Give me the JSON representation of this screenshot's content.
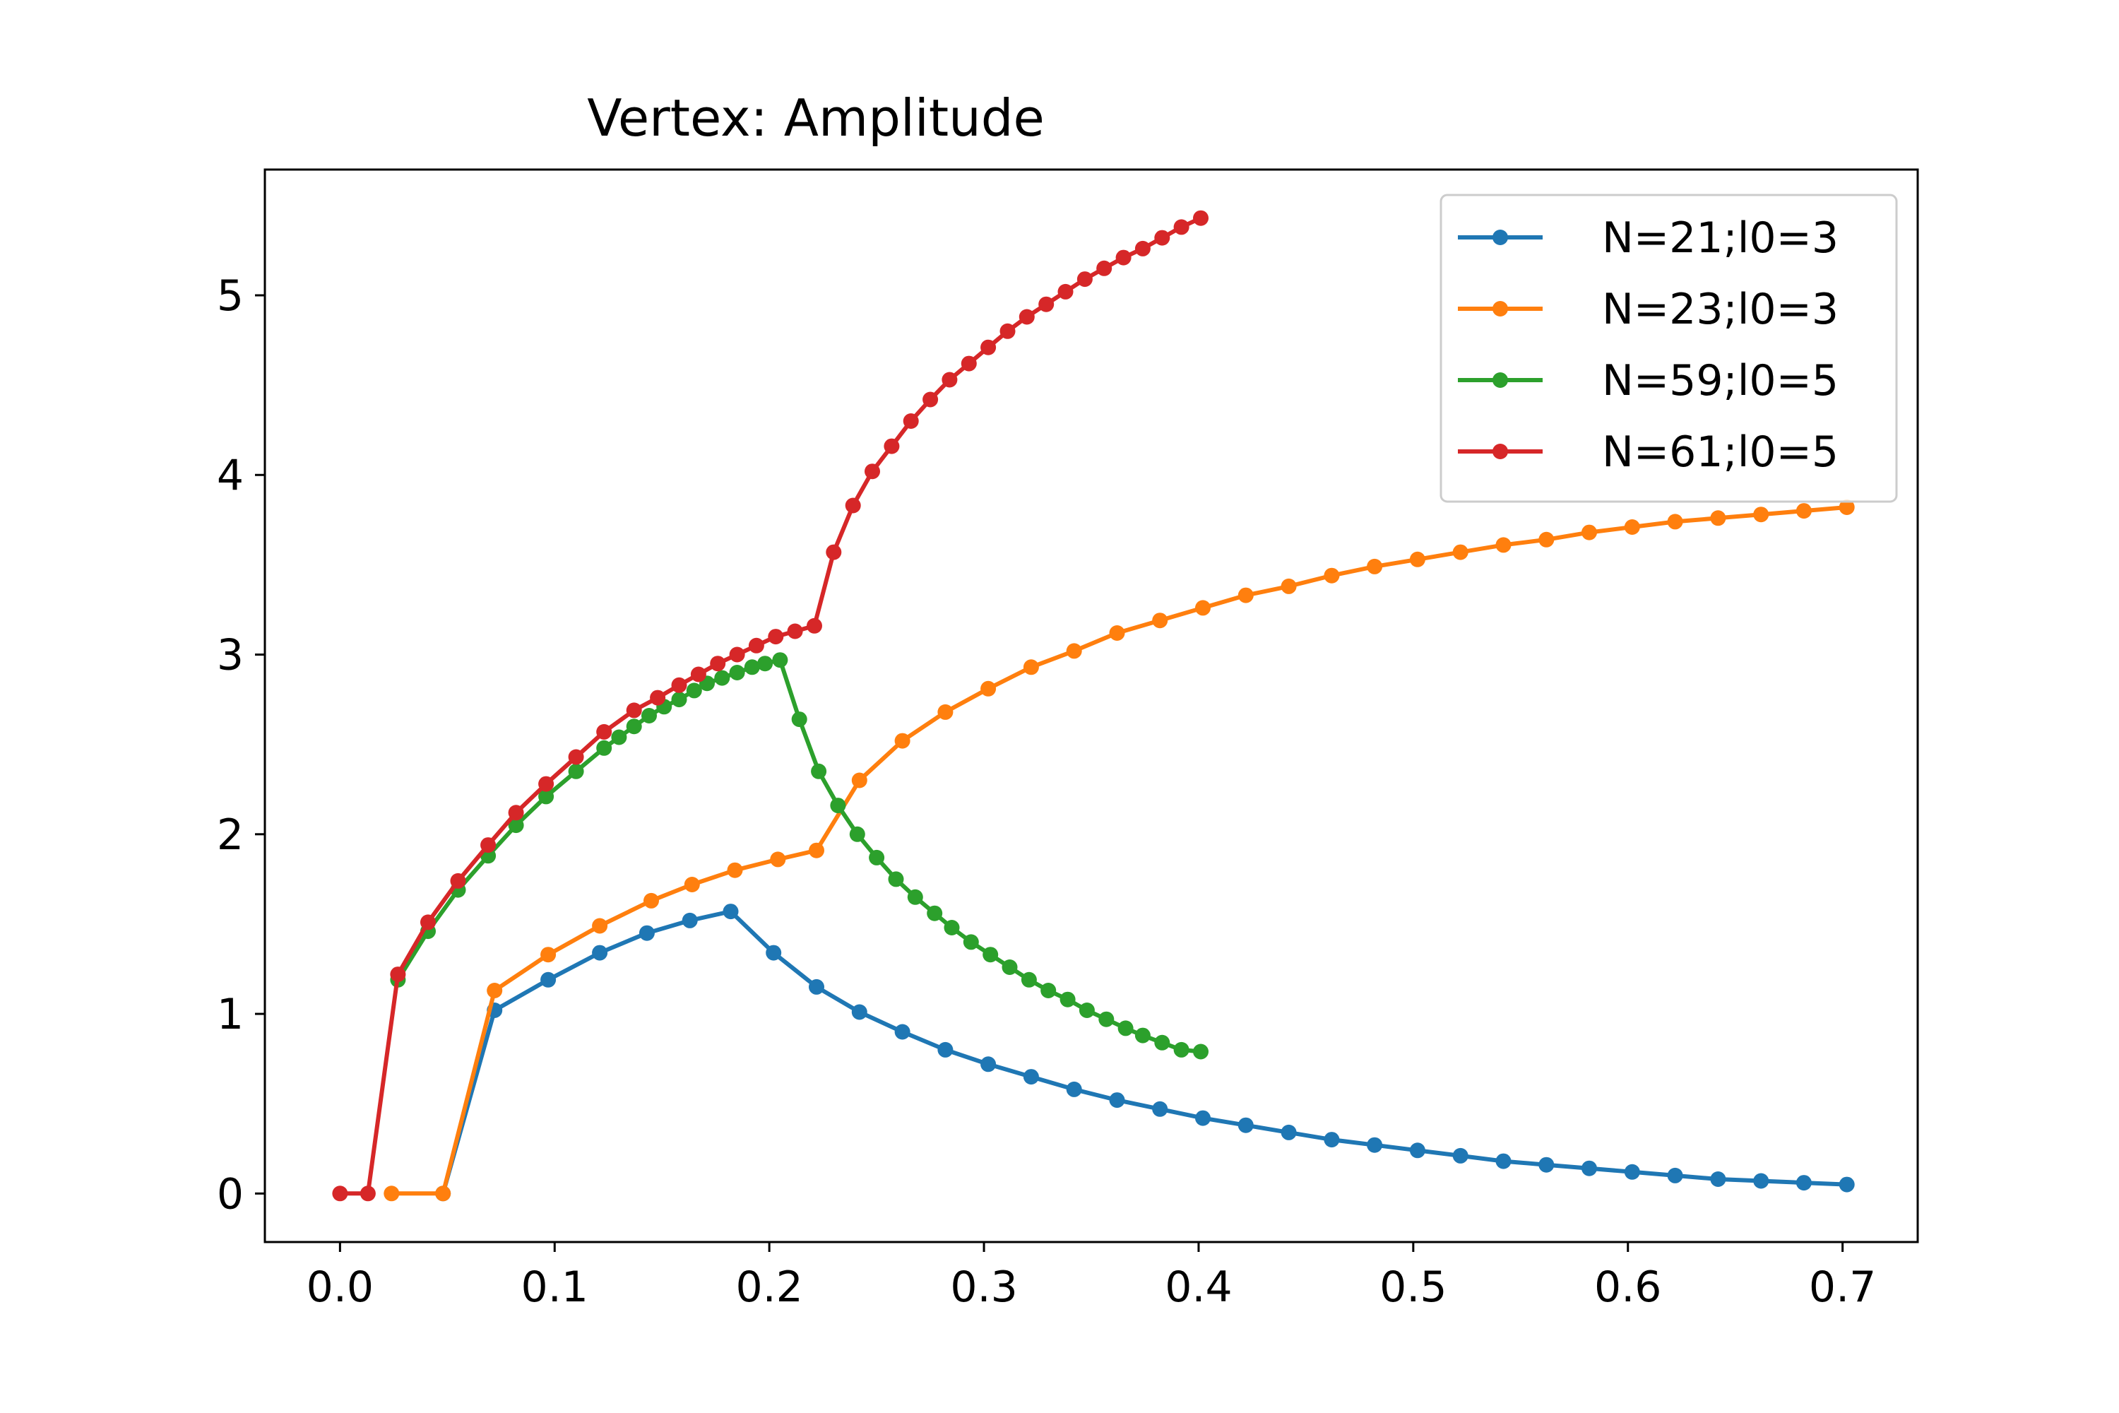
{
  "chart_data": {
    "type": "line",
    "title": "Vertex: Amplitude",
    "xlabel": "",
    "ylabel": "",
    "xlim": [
      -0.035,
      0.735
    ],
    "ylim": [
      -0.27,
      5.7
    ],
    "xticks": [
      "0.0",
      "0.1",
      "0.2",
      "0.3",
      "0.4",
      "0.5",
      "0.6",
      "0.7"
    ],
    "yticks": [
      "0",
      "1",
      "2",
      "3",
      "4",
      "5"
    ],
    "grid": false,
    "legend_position": "top-right",
    "series": [
      {
        "name": "N=21;l0=3",
        "color": "#1f77b4",
        "marker": "circle",
        "x": [
          0.048,
          0.072,
          0.097,
          0.121,
          0.143,
          0.163,
          0.182,
          0.202,
          0.222,
          0.242,
          0.262,
          0.282,
          0.302,
          0.322,
          0.342,
          0.362,
          0.382,
          0.402,
          0.422,
          0.442,
          0.462,
          0.482,
          0.502,
          0.522,
          0.542,
          0.562,
          0.582,
          0.602,
          0.622,
          0.642,
          0.662,
          0.682,
          0.702
        ],
        "y": [
          0.0,
          1.02,
          1.19,
          1.34,
          1.45,
          1.52,
          1.57,
          1.34,
          1.15,
          1.01,
          0.9,
          0.8,
          0.72,
          0.65,
          0.58,
          0.52,
          0.47,
          0.42,
          0.38,
          0.34,
          0.3,
          0.27,
          0.24,
          0.21,
          0.18,
          0.16,
          0.14,
          0.12,
          0.1,
          0.08,
          0.07,
          0.06,
          0.05
        ]
      },
      {
        "name": "N=23;l0=3",
        "color": "#ff7f0e",
        "marker": "circle",
        "x": [
          0.024,
          0.048,
          0.072,
          0.097,
          0.121,
          0.145,
          0.164,
          0.184,
          0.204,
          0.222,
          0.242,
          0.262,
          0.282,
          0.302,
          0.322,
          0.342,
          0.362,
          0.382,
          0.402,
          0.422,
          0.442,
          0.462,
          0.482,
          0.502,
          0.522,
          0.542,
          0.562,
          0.582,
          0.602,
          0.622,
          0.642,
          0.662,
          0.682,
          0.702
        ],
        "y": [
          0.0,
          0.0,
          1.13,
          1.33,
          1.49,
          1.63,
          1.72,
          1.8,
          1.86,
          1.91,
          2.3,
          2.52,
          2.68,
          2.81,
          2.93,
          3.02,
          3.12,
          3.19,
          3.26,
          3.33,
          3.38,
          3.44,
          3.49,
          3.53,
          3.57,
          3.61,
          3.64,
          3.68,
          3.71,
          3.74,
          3.76,
          3.78,
          3.8,
          3.82
        ]
      },
      {
        "name": "N=59;l0=5",
        "color": "#2ca02c",
        "marker": "circle",
        "x": [
          0.027,
          0.041,
          0.055,
          0.069,
          0.082,
          0.096,
          0.11,
          0.123,
          0.13,
          0.137,
          0.144,
          0.151,
          0.158,
          0.165,
          0.171,
          0.178,
          0.185,
          0.192,
          0.198,
          0.205,
          0.214,
          0.223,
          0.232,
          0.241,
          0.25,
          0.259,
          0.268,
          0.277,
          0.285,
          0.294,
          0.303,
          0.312,
          0.321,
          0.33,
          0.339,
          0.348,
          0.357,
          0.366,
          0.374,
          0.383,
          0.392,
          0.401
        ],
        "y": [
          1.19,
          1.46,
          1.69,
          1.88,
          2.05,
          2.21,
          2.35,
          2.48,
          2.54,
          2.6,
          2.66,
          2.71,
          2.75,
          2.8,
          2.84,
          2.87,
          2.9,
          2.93,
          2.95,
          2.97,
          2.64,
          2.35,
          2.16,
          2.0,
          1.87,
          1.75,
          1.65,
          1.56,
          1.48,
          1.4,
          1.33,
          1.26,
          1.19,
          1.13,
          1.08,
          1.02,
          0.97,
          0.92,
          0.88,
          0.84,
          0.8,
          0.79
        ]
      },
      {
        "name": "N=61;l0=5",
        "color": "#d62728",
        "marker": "circle",
        "x": [
          0.0,
          0.013,
          0.027,
          0.041,
          0.055,
          0.069,
          0.082,
          0.096,
          0.11,
          0.123,
          0.137,
          0.148,
          0.158,
          0.167,
          0.176,
          0.185,
          0.194,
          0.203,
          0.212,
          0.221,
          0.23,
          0.239,
          0.248,
          0.257,
          0.266,
          0.275,
          0.284,
          0.293,
          0.302,
          0.311,
          0.32,
          0.329,
          0.338,
          0.347,
          0.356,
          0.365,
          0.374,
          0.383,
          0.392,
          0.401
        ],
        "y": [
          0.0,
          0.0,
          1.22,
          1.51,
          1.74,
          1.94,
          2.12,
          2.28,
          2.43,
          2.57,
          2.69,
          2.76,
          2.83,
          2.89,
          2.95,
          3.0,
          3.05,
          3.1,
          3.13,
          3.16,
          3.57,
          3.83,
          4.02,
          4.16,
          4.3,
          4.42,
          4.53,
          4.62,
          4.71,
          4.8,
          4.88,
          4.95,
          5.02,
          5.09,
          5.15,
          5.21,
          5.26,
          5.32,
          5.38,
          5.43
        ]
      }
    ]
  }
}
